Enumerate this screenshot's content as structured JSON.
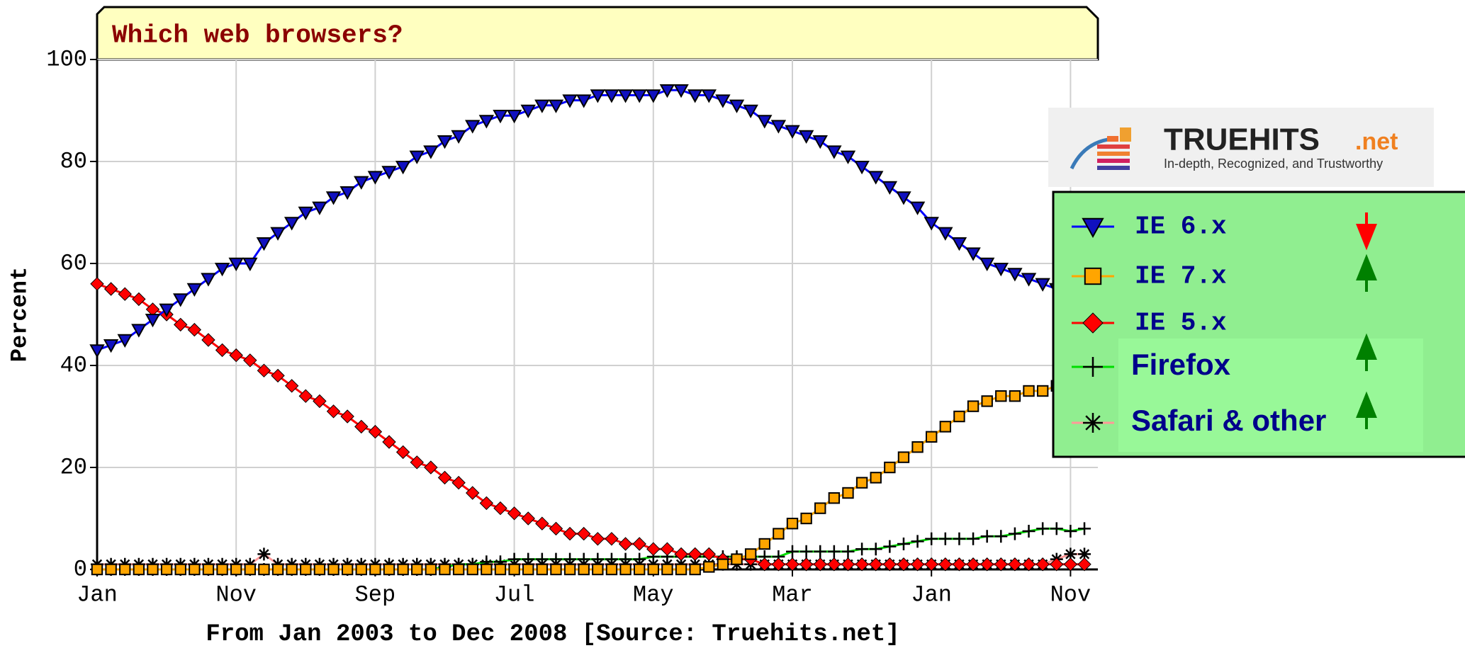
{
  "chart_data": {
    "type": "line",
    "title": "Which web browsers?",
    "x_label": "From Jan 2003 to Dec 2008 [Source: Truehits.net]",
    "y_label": "Percent",
    "categories": [
      "Jan",
      null,
      null,
      null,
      null,
      null,
      null,
      null,
      null,
      null,
      "Nov",
      null,
      null,
      null,
      null,
      null,
      null,
      null,
      null,
      null,
      "Sep",
      null,
      null,
      null,
      null,
      null,
      null,
      null,
      null,
      null,
      "Jul",
      null,
      null,
      null,
      null,
      null,
      null,
      null,
      null,
      null,
      "May",
      null,
      null,
      null,
      null,
      null,
      null,
      null,
      null,
      null,
      "Mar",
      null,
      null,
      null,
      null,
      null,
      null,
      null,
      null,
      null,
      "Jan",
      null,
      null,
      null,
      null,
      null,
      null,
      null,
      null,
      null,
      "Nov",
      null
    ],
    "ylim": [
      0,
      100
    ],
    "yticks": [
      0,
      20,
      40,
      60,
      80,
      100
    ],
    "grid": true,
    "series": [
      {
        "name": "IE 6.x",
        "color": "#0000ff",
        "marker": "triangle-down",
        "marker_color": "#1010c0",
        "values": [
          43,
          44,
          45,
          47,
          49,
          51,
          53,
          55,
          57,
          59,
          60,
          60,
          64,
          66,
          68,
          70,
          71,
          73,
          74,
          76,
          77,
          78,
          79,
          81,
          82,
          84,
          85,
          87,
          88,
          89,
          89,
          90,
          91,
          91,
          92,
          92,
          93,
          93,
          93,
          93,
          93,
          94,
          94,
          93,
          93,
          92,
          91,
          90,
          88,
          87,
          86,
          85,
          84,
          82,
          81,
          79,
          77,
          75,
          73,
          71,
          68,
          66,
          64,
          62,
          60,
          59,
          58,
          57,
          56,
          55,
          54,
          53
        ]
      },
      {
        "name": "IE 7.x",
        "color": "#ffa500",
        "marker": "square",
        "marker_color": "#ffa500",
        "values": [
          0,
          0,
          0,
          0,
          0,
          0,
          0,
          0,
          0,
          0,
          0,
          0,
          0,
          0,
          0,
          0,
          0,
          0,
          0,
          0,
          0,
          0,
          0,
          0,
          0,
          0,
          0,
          0,
          0,
          0,
          0,
          0,
          0,
          0,
          0,
          0,
          0,
          0,
          0,
          0,
          0,
          0,
          0,
          0,
          0.5,
          1,
          2,
          3,
          5,
          7,
          9,
          10,
          12,
          14,
          15,
          17,
          18,
          20,
          22,
          24,
          26,
          28,
          30,
          32,
          33,
          34,
          34,
          35,
          35,
          36,
          36,
          37
        ]
      },
      {
        "name": "IE 5.x",
        "color": "#ff0000",
        "marker": "diamond",
        "marker_color": "#ff0000",
        "values": [
          56,
          55,
          54,
          53,
          51,
          50,
          48,
          47,
          45,
          43,
          42,
          41,
          39,
          38,
          36,
          34,
          33,
          31,
          30,
          28,
          27,
          25,
          23,
          21,
          20,
          18,
          17,
          15,
          13,
          12,
          11,
          10,
          9,
          8,
          7,
          7,
          6,
          6,
          5,
          5,
          4,
          4,
          3,
          3,
          3,
          2,
          2,
          2,
          1,
          1,
          1,
          1,
          1,
          1,
          1,
          1,
          1,
          1,
          1,
          1,
          1,
          1,
          1,
          1,
          1,
          1,
          1,
          1,
          1,
          1,
          1,
          1
        ]
      },
      {
        "name": "Firefox",
        "color": "#00dd00",
        "marker": "plus",
        "marker_color": "#000000",
        "values": [
          0,
          0,
          0,
          0,
          0,
          0,
          0,
          0,
          0,
          0,
          0,
          0,
          0,
          0,
          0,
          0,
          0,
          0,
          0,
          0,
          0,
          0,
          0,
          0,
          0,
          0.5,
          1,
          1,
          1.5,
          1.5,
          2,
          2,
          2,
          2,
          2,
          2,
          2,
          2,
          2,
          2,
          2.5,
          2.5,
          2.5,
          2.5,
          2.5,
          2.5,
          2.5,
          2.5,
          2.5,
          2.5,
          3.5,
          3.5,
          3.5,
          3.5,
          3.5,
          4,
          4,
          4.5,
          5,
          5.5,
          6,
          6,
          6,
          6,
          6.5,
          6.5,
          7,
          7.5,
          8,
          8,
          7.5,
          8
        ]
      },
      {
        "name": "Safari & other",
        "color": "#ff9999",
        "marker": "asterisk",
        "marker_color": "#000000",
        "values": [
          1,
          1,
          1,
          1,
          1,
          1,
          1,
          1,
          1,
          1,
          1,
          1,
          3,
          1,
          1,
          1,
          1,
          1,
          1,
          1,
          1,
          1,
          1,
          1,
          1,
          1,
          1,
          1,
          1,
          1,
          1,
          1,
          1,
          1,
          1,
          1,
          1,
          1,
          1,
          1,
          1,
          1,
          1,
          1,
          1,
          1,
          1,
          1,
          1,
          1,
          1,
          1,
          1,
          1,
          1,
          1,
          1,
          1,
          1,
          1,
          1,
          1,
          1,
          1,
          1,
          1,
          1,
          1,
          1,
          2,
          3,
          3
        ]
      }
    ],
    "logo_text": "TRUEHITS",
    "logo_suffix": ".net",
    "logo_tagline": "In-depth, Recognized, and Trustworthy"
  }
}
